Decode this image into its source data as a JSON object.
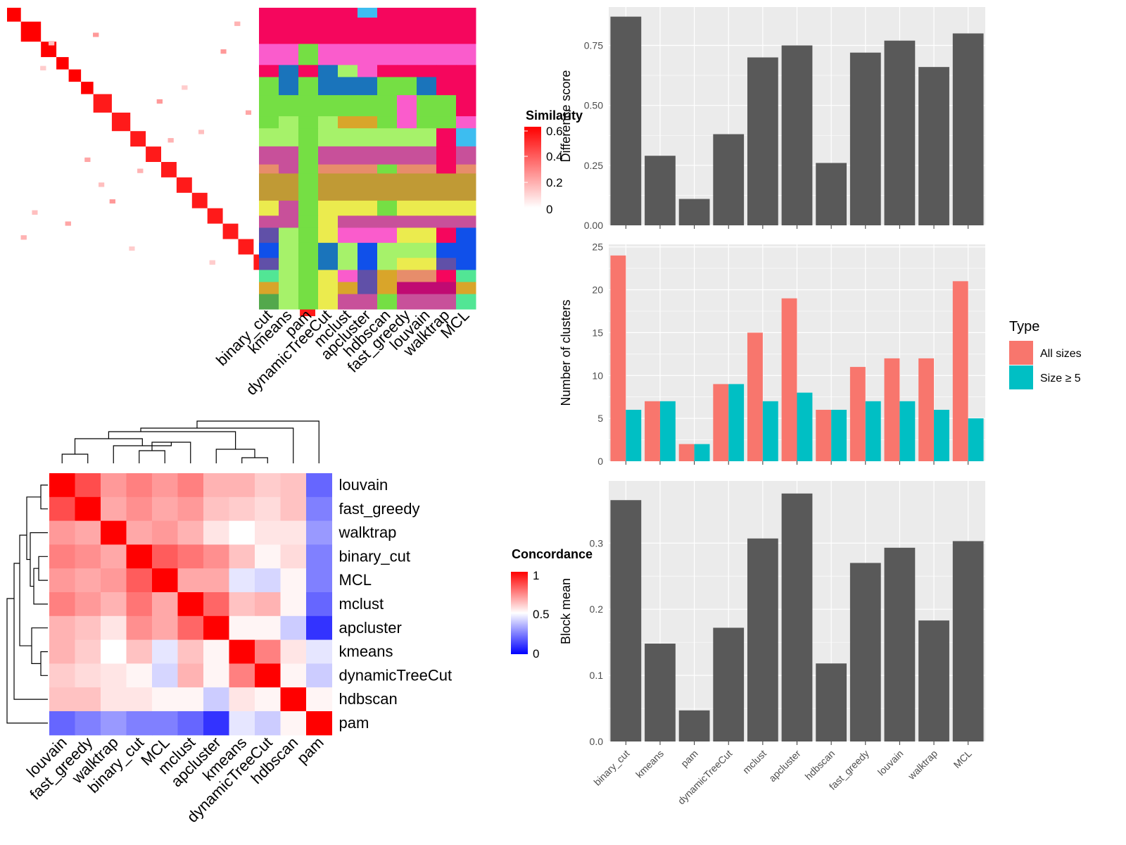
{
  "panels": {
    "similarity_legend_title": "Similarity",
    "similarity_legend_ticks": [
      "0.6",
      "0.4",
      "0.2",
      "0"
    ],
    "concordance_legend_title": "Concordance",
    "concordance_legend_ticks": [
      "1",
      "0.5",
      "0"
    ],
    "colors": {
      "red": "#ff0000",
      "blue": "#0000ff",
      "bar_grey": "#595959",
      "panel_bg": "#ebebeb",
      "all_sizes": "#f8766d",
      "size5": "#00bfc4"
    }
  },
  "similarity_heatmap": {
    "methods": [
      "binary_cut",
      "kmeans",
      "pam",
      "dynamicTreeCut",
      "mclust",
      "apcluster",
      "hdbscan",
      "fast_greedy",
      "louvain",
      "walktrap",
      "MCL"
    ]
  },
  "concordance_heatmap": {
    "order": [
      "louvain",
      "fast_greedy",
      "walktrap",
      "binary_cut",
      "MCL",
      "mclust",
      "apcluster",
      "kmeans",
      "dynamicTreeCut",
      "hdbscan",
      "pam"
    ],
    "matrix": [
      [
        1.0,
        0.85,
        0.7,
        0.75,
        0.7,
        0.75,
        0.65,
        0.65,
        0.6,
        0.62,
        0.2
      ],
      [
        0.85,
        1.0,
        0.67,
        0.72,
        0.67,
        0.7,
        0.62,
        0.6,
        0.57,
        0.62,
        0.25
      ],
      [
        0.7,
        0.67,
        1.0,
        0.67,
        0.7,
        0.65,
        0.55,
        0.5,
        0.55,
        0.55,
        0.3
      ],
      [
        0.75,
        0.72,
        0.67,
        1.0,
        0.82,
        0.77,
        0.72,
        0.62,
        0.52,
        0.57,
        0.25
      ],
      [
        0.7,
        0.67,
        0.7,
        0.82,
        1.0,
        0.67,
        0.67,
        0.45,
        0.42,
        0.52,
        0.25
      ],
      [
        0.75,
        0.7,
        0.65,
        0.77,
        0.67,
        1.0,
        0.8,
        0.62,
        0.65,
        0.52,
        0.2
      ],
      [
        0.65,
        0.62,
        0.55,
        0.72,
        0.67,
        0.8,
        1.0,
        0.52,
        0.52,
        0.4,
        0.1
      ],
      [
        0.65,
        0.6,
        0.5,
        0.62,
        0.45,
        0.62,
        0.52,
        1.0,
        0.75,
        0.55,
        0.45
      ],
      [
        0.6,
        0.57,
        0.55,
        0.52,
        0.42,
        0.65,
        0.52,
        0.75,
        1.0,
        0.52,
        0.4
      ],
      [
        0.62,
        0.62,
        0.55,
        0.55,
        0.52,
        0.52,
        0.4,
        0.55,
        0.52,
        1.0,
        0.52
      ],
      [
        0.2,
        0.25,
        0.3,
        0.25,
        0.25,
        0.2,
        0.1,
        0.45,
        0.4,
        0.52,
        1.0
      ]
    ]
  },
  "chart_data": [
    {
      "type": "bar",
      "ylabel": "Difference score",
      "categories": [
        "binary_cut",
        "kmeans",
        "pam",
        "dynamicTreeCut",
        "mclust",
        "apcluster",
        "hdbscan",
        "fast_greedy",
        "louvain",
        "walktrap",
        "MCL"
      ],
      "values": [
        0.87,
        0.29,
        0.11,
        0.38,
        0.7,
        0.75,
        0.26,
        0.72,
        0.77,
        0.66,
        0.8
      ],
      "yticks": [
        "0.00",
        "0.25",
        "0.50",
        "0.75"
      ],
      "ylim": [
        0,
        0.91
      ],
      "grid": true
    },
    {
      "type": "bar",
      "ylabel": "Number of clusters",
      "categories": [
        "binary_cut",
        "kmeans",
        "pam",
        "dynamicTreeCut",
        "mclust",
        "apcluster",
        "hdbscan",
        "fast_greedy",
        "louvain",
        "walktrap",
        "MCL"
      ],
      "series": [
        {
          "name": "All sizes",
          "values": [
            24,
            7,
            2,
            9,
            15,
            19,
            6,
            11,
            12,
            12,
            21
          ]
        },
        {
          "name": "Size ≥ 5",
          "values": [
            6,
            7,
            2,
            9,
            7,
            8,
            6,
            7,
            7,
            6,
            5
          ]
        }
      ],
      "yticks": [
        "0",
        "5",
        "10",
        "15",
        "20",
        "25"
      ],
      "ylim": [
        0,
        25.3
      ],
      "legend_title": "Type",
      "legend_position": "right",
      "grid": true
    },
    {
      "type": "bar",
      "ylabel": "Block mean",
      "categories": [
        "binary_cut",
        "kmeans",
        "pam",
        "dynamicTreeCut",
        "mclust",
        "apcluster",
        "hdbscan",
        "fast_greedy",
        "louvain",
        "walktrap",
        "MCL"
      ],
      "values": [
        0.365,
        0.148,
        0.047,
        0.172,
        0.307,
        0.375,
        0.118,
        0.27,
        0.293,
        0.183,
        0.303
      ],
      "yticks": [
        "0.0",
        "0.1",
        "0.2",
        "0.3"
      ],
      "ylim": [
        0,
        0.394
      ],
      "grid": true
    }
  ]
}
